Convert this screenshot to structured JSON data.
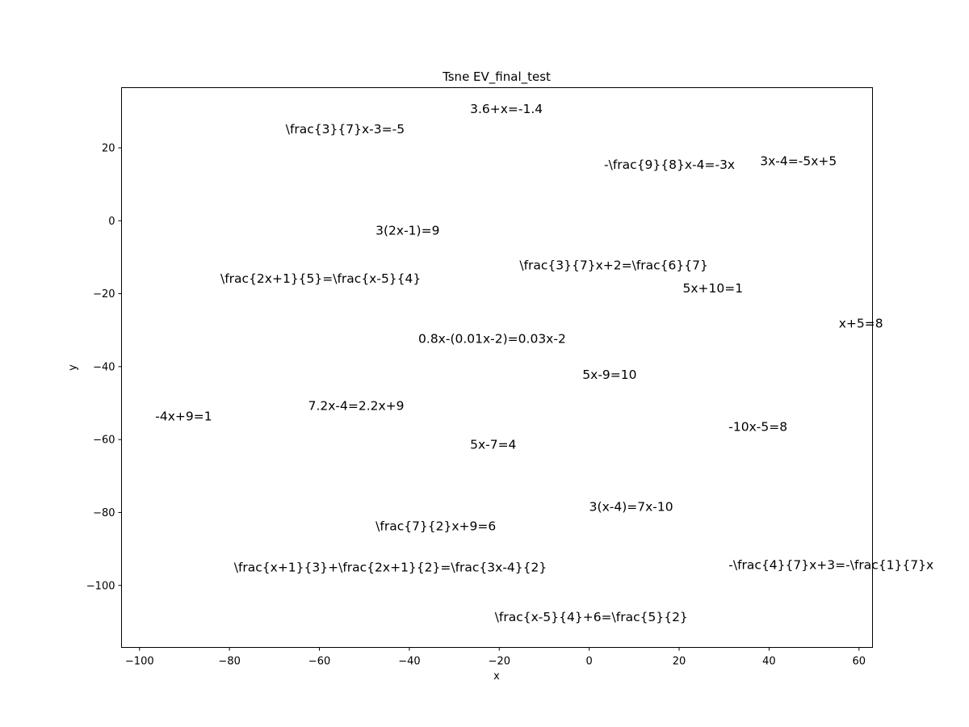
{
  "chart_data": {
    "type": "scatter",
    "title": "Tsne EV_final_test",
    "xlabel": "x",
    "ylabel": "y",
    "xlim": [
      -104,
      63
    ],
    "ylim": [
      -117,
      36.5
    ],
    "xticks": [
      -100,
      -80,
      -60,
      -40,
      -20,
      0,
      20,
      40,
      60
    ],
    "yticks": [
      20,
      0,
      -20,
      -40,
      -60,
      -80,
      -100
    ],
    "grid": false,
    "points": [
      {
        "label": "3.6+x=-1.4",
        "x": -26.5,
        "y": 29.5
      },
      {
        "label": "\\frac{3}{7}x-3=-5",
        "x": -67.5,
        "y": 24
      },
      {
        "label": "-\\frac{9}{8}x-4=-3x",
        "x": 3.3,
        "y": 14.2
      },
      {
        "label": "3x-4=-5x+5",
        "x": 38,
        "y": 15.2
      },
      {
        "label": "3(2x-1)=9",
        "x": -47.5,
        "y": -3.8
      },
      {
        "label": "\\frac{3}{7}x+2=\\frac{6}{7}",
        "x": -15.5,
        "y": -13.3
      },
      {
        "label": "\\frac{2x+1}{5}=\\frac{x-5}{4}",
        "x": -82,
        "y": -17
      },
      {
        "label": "5x+10=1",
        "x": 20.8,
        "y": -19.6
      },
      {
        "label": "x+5=8",
        "x": 55.5,
        "y": -29.3
      },
      {
        "label": "0.8x-(0.01x-2)=0.03x-2",
        "x": -38,
        "y": -33.5
      },
      {
        "label": "5x-9=10",
        "x": -1.5,
        "y": -43.4
      },
      {
        "label": "7.2x-4=2.2x+9",
        "x": -62.5,
        "y": -51.9
      },
      {
        "label": "-4x+9=1",
        "x": -96.5,
        "y": -54.8
      },
      {
        "label": "-10x-5=8",
        "x": 31,
        "y": -57.6
      },
      {
        "label": "5x-7=4",
        "x": -26.5,
        "y": -62.5
      },
      {
        "label": "3(x-4)=7x-10",
        "x": 0,
        "y": -79.6
      },
      {
        "label": "\\frac{7}{2}x+9=6",
        "x": -47.5,
        "y": -84.9
      },
      {
        "label": "\\frac{x+1}{3}+\\frac{2x+1}{2}=\\frac{3x-4}{2}",
        "x": -79,
        "y": -96.2
      },
      {
        "label": "-\\frac{4}{7}x+3=-\\frac{1}{7}x",
        "x": 31,
        "y": -95.5
      },
      {
        "label": "\\frac{x-5}{4}+6=\\frac{5}{2}",
        "x": -21,
        "y": -109.8
      }
    ]
  }
}
